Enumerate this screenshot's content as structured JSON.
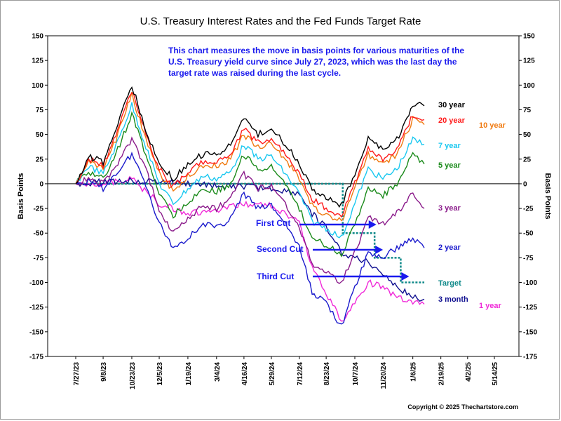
{
  "chart_data": {
    "type": "line",
    "title": "U.S. Treasury Interest Rates and the Fed Funds Target Rate",
    "ylabel_left": "Basis Points",
    "ylabel_right": "Basis Points",
    "ylim": [
      -175,
      150
    ],
    "y_ticks": [
      150,
      125,
      100,
      75,
      50,
      25,
      0,
      -25,
      -50,
      -75,
      -100,
      -125,
      -150,
      -175
    ],
    "x_tick_labels": [
      "7/27/23",
      "9/8/23",
      "10/23/23",
      "12/5/23",
      "1/19/24",
      "3/4/24",
      "4/16/24",
      "5/29/24",
      "7/12/24",
      "8/23/24",
      "10/7/24",
      "11/20/24",
      "1/6/25",
      "2/19/25",
      "4/2/25",
      "5/14/25"
    ],
    "grid": false,
    "annotation": [
      "This chart measures the move in basis points for various maturities of the",
      "U.S. Treasury yield curve since July 27, 2023, which was the last day the",
      "target rate was raised during the last cycle."
    ],
    "cuts": [
      {
        "label": "First Cut",
        "date": "9/18/24"
      },
      {
        "label": "Second Cut",
        "date": "11/7/24"
      },
      {
        "label": "Third Cut",
        "date": "12/18/24"
      }
    ],
    "series": [
      {
        "name": "30 year",
        "color": "#000000",
        "x": [
          "7/27/23",
          "8/16/23",
          "9/8/23",
          "9/28/23",
          "10/23/23",
          "11/14/23",
          "12/5/23",
          "12/27/23",
          "1/19/24",
          "2/12/24",
          "3/4/24",
          "3/26/24",
          "4/16/24",
          "5/8/24",
          "5/29/24",
          "6/20/24",
          "7/12/24",
          "8/1/24",
          "8/23/24",
          "9/16/24",
          "10/7/24",
          "10/28/24",
          "11/20/24",
          "12/12/24",
          "1/6/25",
          "1/24/25"
        ],
        "values": [
          0,
          28,
          22,
          55,
          100,
          55,
          20,
          5,
          20,
          30,
          30,
          40,
          65,
          50,
          55,
          40,
          20,
          -5,
          -15,
          -22,
          10,
          45,
          35,
          45,
          80,
          79
        ]
      },
      {
        "name": "20 year",
        "color": "#ff1a1a",
        "x": [
          "7/27/23",
          "8/16/23",
          "9/8/23",
          "9/28/23",
          "10/23/23",
          "11/14/23",
          "12/5/23",
          "12/27/23",
          "1/19/24",
          "2/12/24",
          "3/4/24",
          "3/26/24",
          "4/16/24",
          "5/8/24",
          "5/29/24",
          "6/20/24",
          "7/12/24",
          "8/1/24",
          "8/23/24",
          "9/16/24",
          "10/7/24",
          "10/28/24",
          "11/20/24",
          "12/12/24",
          "1/6/25",
          "1/24/25"
        ],
        "values": [
          0,
          25,
          18,
          50,
          95,
          50,
          15,
          -3,
          12,
          22,
          22,
          30,
          55,
          42,
          45,
          30,
          10,
          -15,
          -25,
          -32,
          0,
          35,
          25,
          35,
          70,
          65
        ]
      },
      {
        "name": "10 year",
        "color": "#f07a10",
        "x": [
          "7/27/23",
          "8/16/23",
          "9/8/23",
          "9/28/23",
          "10/23/23",
          "11/14/23",
          "12/5/23",
          "12/27/23",
          "1/19/24",
          "2/12/24",
          "3/4/24",
          "3/26/24",
          "4/16/24",
          "5/8/24",
          "5/29/24",
          "6/20/24",
          "7/12/24",
          "8/1/24",
          "8/23/24",
          "9/16/24",
          "10/7/24",
          "10/28/24",
          "11/20/24",
          "12/12/24",
          "1/6/25",
          "1/24/25"
        ],
        "values": [
          0,
          22,
          15,
          45,
          90,
          45,
          10,
          -8,
          8,
          18,
          18,
          25,
          50,
          38,
          40,
          25,
          5,
          -22,
          -32,
          -38,
          -5,
          30,
          20,
          30,
          65,
          60
        ]
      },
      {
        "name": "7 year",
        "color": "#1ac8f0",
        "x": [
          "7/27/23",
          "8/16/23",
          "9/8/23",
          "9/28/23",
          "10/23/23",
          "11/14/23",
          "12/5/23",
          "12/27/23",
          "1/19/24",
          "2/12/24",
          "3/4/24",
          "3/26/24",
          "4/16/24",
          "5/8/24",
          "5/29/24",
          "6/20/24",
          "7/12/24",
          "8/1/24",
          "8/23/24",
          "9/16/24",
          "10/7/24",
          "10/28/24",
          "11/20/24",
          "12/12/24",
          "1/6/25",
          "1/24/25"
        ],
        "values": [
          0,
          18,
          10,
          38,
          80,
          38,
          0,
          -20,
          -5,
          8,
          5,
          12,
          40,
          25,
          28,
          10,
          -10,
          -38,
          -45,
          -55,
          -20,
          15,
          5,
          15,
          45,
          40
        ]
      },
      {
        "name": "5 year",
        "color": "#1a8a1a",
        "x": [
          "7/27/23",
          "8/16/23",
          "9/8/23",
          "9/28/23",
          "10/23/23",
          "11/14/23",
          "12/5/23",
          "12/27/23",
          "1/19/24",
          "2/12/24",
          "3/4/24",
          "3/26/24",
          "4/16/24",
          "5/8/24",
          "5/29/24",
          "6/20/24",
          "7/12/24",
          "8/1/24",
          "8/23/24",
          "9/16/24",
          "10/7/24",
          "10/28/24",
          "11/20/24",
          "12/12/24",
          "1/6/25",
          "1/24/25"
        ],
        "values": [
          0,
          12,
          5,
          30,
          70,
          30,
          -10,
          -32,
          -18,
          -5,
          -8,
          0,
          30,
          15,
          18,
          -2,
          -25,
          -55,
          -62,
          -72,
          -40,
          -5,
          -12,
          0,
          30,
          20
        ]
      },
      {
        "name": "3 year",
        "color": "#8a1a8a",
        "x": [
          "7/27/23",
          "8/16/23",
          "9/8/23",
          "9/28/23",
          "10/23/23",
          "11/14/23",
          "12/5/23",
          "12/27/23",
          "1/19/24",
          "2/12/24",
          "3/4/24",
          "3/26/24",
          "4/16/24",
          "5/8/24",
          "5/29/24",
          "6/20/24",
          "7/12/24",
          "8/1/24",
          "8/23/24",
          "9/16/24",
          "10/7/24",
          "10/28/24",
          "11/20/24",
          "12/12/24",
          "1/6/25",
          "1/24/25"
        ],
        "values": [
          0,
          5,
          0,
          18,
          45,
          15,
          -25,
          -50,
          -35,
          -22,
          -25,
          -15,
          10,
          -5,
          -2,
          -20,
          -45,
          -80,
          -90,
          -100,
          -70,
          -35,
          -40,
          -30,
          -10,
          -25
        ]
      },
      {
        "name": "2 year",
        "color": "#1a1acc",
        "x": [
          "7/27/23",
          "8/16/23",
          "9/8/23",
          "9/28/23",
          "10/23/23",
          "11/14/23",
          "12/5/23",
          "12/27/23",
          "1/19/24",
          "2/12/24",
          "3/4/24",
          "3/26/24",
          "4/16/24",
          "5/8/24",
          "5/29/24",
          "6/20/24",
          "7/12/24",
          "8/1/24",
          "8/23/24",
          "9/16/24",
          "10/7/24",
          "10/28/24",
          "11/20/24",
          "12/12/24",
          "1/6/25",
          "1/24/25"
        ],
        "values": [
          0,
          2,
          -5,
          10,
          30,
          0,
          -40,
          -65,
          -55,
          -40,
          -45,
          -35,
          -10,
          -25,
          -22,
          -40,
          -65,
          -110,
          -120,
          -145,
          -105,
          -70,
          -75,
          -65,
          -55,
          -65
        ]
      },
      {
        "name": "3 month",
        "color": "#101090",
        "x": [
          "7/27/23",
          "9/8/23",
          "10/23/23",
          "12/5/23",
          "1/19/24",
          "3/4/24",
          "4/16/24",
          "5/29/24",
          "7/12/24",
          "8/1/24",
          "8/23/24",
          "9/16/24",
          "10/7/24",
          "10/28/24",
          "11/20/24",
          "12/12/24",
          "1/6/25",
          "1/24/25"
        ],
        "values": [
          0,
          2,
          3,
          2,
          0,
          -2,
          -3,
          -5,
          -10,
          -30,
          -45,
          -70,
          -75,
          -80,
          -90,
          -105,
          -115,
          -117
        ]
      },
      {
        "name": "1 year",
        "color": "#f028d8",
        "x": [
          "7/27/23",
          "8/16/23",
          "9/8/23",
          "10/23/23",
          "12/5/23",
          "1/19/24",
          "3/4/24",
          "4/16/24",
          "5/29/24",
          "7/12/24",
          "8/1/24",
          "8/23/24",
          "9/16/24",
          "10/7/24",
          "10/28/24",
          "11/20/24",
          "12/12/24",
          "1/6/25",
          "1/24/25"
        ],
        "values": [
          0,
          0,
          0,
          5,
          -20,
          -30,
          -28,
          -20,
          -22,
          -40,
          -85,
          -110,
          -140,
          -120,
          -100,
          -105,
          -115,
          -120,
          -122
        ]
      },
      {
        "name": "Target",
        "color": "#108a8a",
        "step": true,
        "x": [
          "7/27/23",
          "9/18/24",
          "11/7/24",
          "12/18/24",
          "1/24/25"
        ],
        "values": [
          0,
          -50,
          -75,
          -100,
          -100
        ]
      }
    ]
  },
  "series_label_positions": [],
  "copyright": "Copyright © 2025 Thechartstore.com"
}
